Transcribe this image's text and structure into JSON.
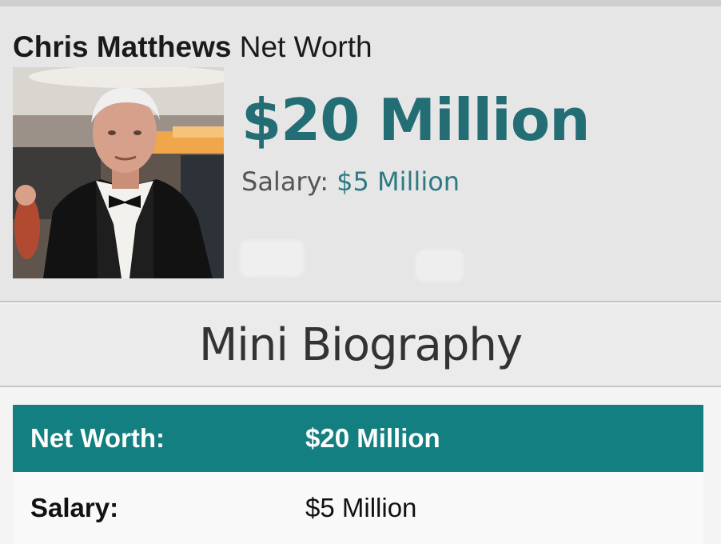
{
  "header": {
    "name": "Chris Matthews",
    "title_suffix": "Net Worth"
  },
  "portrait": {
    "icon": "person-photo"
  },
  "summary": {
    "net_worth": "$20 Million",
    "salary_label": "Salary:",
    "salary_value": "$5 Million"
  },
  "bio_section": {
    "title": "Mini Biography"
  },
  "facts_table": {
    "rows": [
      {
        "key": "Net Worth:",
        "value": "$20 Million"
      },
      {
        "key": "Salary:",
        "value": "$5 Million"
      }
    ]
  },
  "colors": {
    "accent": "#236d74",
    "table_header": "#147f80",
    "card_background": "#e6e6e6"
  }
}
